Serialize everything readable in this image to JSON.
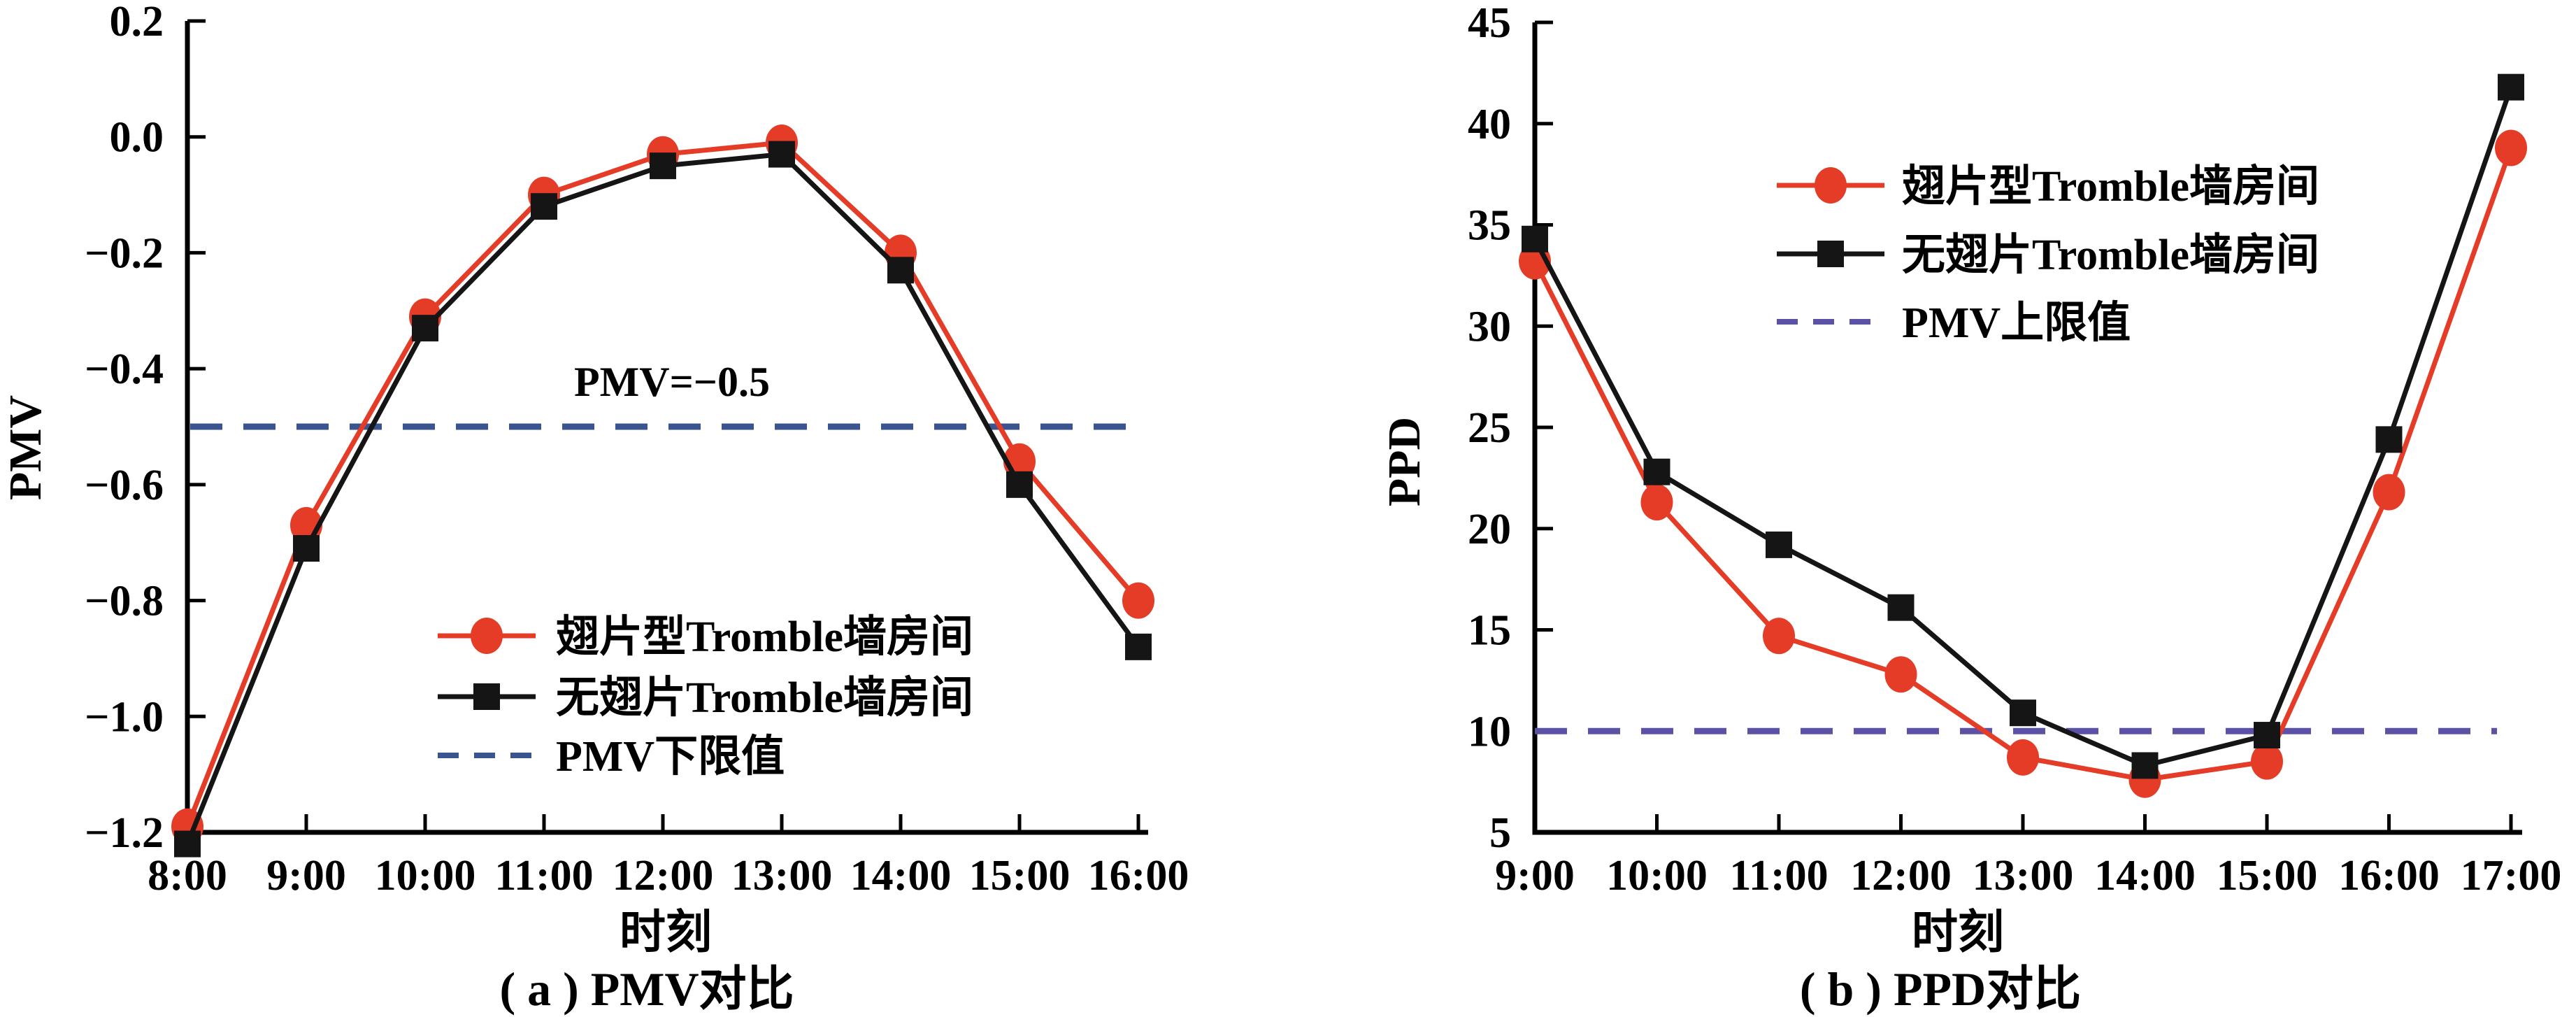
{
  "figure": {
    "background": "#ffffff",
    "description": "Two line charts comparing finned vs non-finned Tromble wall rooms"
  },
  "chart_data": [
    {
      "id": "pmv",
      "type": "line",
      "panel_label": "( a ) PMV对比",
      "xlabel": "时刻",
      "ylabel": "PMV",
      "x_categories": [
        "8:00",
        "9:00",
        "10:00",
        "11:00",
        "12:00",
        "13:00",
        "14:00",
        "15:00",
        "16:00"
      ],
      "ylim": [
        -1.2,
        0.2
      ],
      "y_ticks": [
        0.2,
        0.0,
        -0.2,
        -0.4,
        -0.6,
        -0.8,
        -1.0,
        -1.2
      ],
      "y_tick_labels": [
        "0.2",
        "0.0",
        "−0.2",
        "−0.4",
        "−0.6",
        "−0.8",
        "−1.0",
        "−1.2"
      ],
      "grid": false,
      "legend_position": "inside-lower-right",
      "series": [
        {
          "name": "翅片型Tromble墙房间",
          "color": "#e53c28",
          "marker": "circle",
          "values": [
            -1.19,
            -0.67,
            -0.31,
            -0.1,
            -0.03,
            -0.01,
            -0.2,
            -0.56,
            -0.8
          ]
        },
        {
          "name": "无翅片Tromble墙房间",
          "color": "#151515",
          "marker": "square",
          "values": [
            -1.22,
            -0.71,
            -0.33,
            -0.12,
            -0.05,
            -0.03,
            -0.23,
            -0.6,
            -0.88
          ]
        }
      ],
      "reference_line": {
        "label": "PMV下限值",
        "value": -0.5,
        "color": "#3a5490",
        "style": "dashed"
      },
      "annotation": {
        "text": "PMV=−0.5"
      }
    },
    {
      "id": "ppd",
      "type": "line",
      "panel_label": "( b ) PPD对比",
      "xlabel": "时刻",
      "ylabel": "PPD",
      "x_categories": [
        "9:00",
        "10:00",
        "11:00",
        "12:00",
        "13:00",
        "14:00",
        "15:00",
        "16:00",
        "17:00"
      ],
      "ylim": [
        5,
        45
      ],
      "y_ticks": [
        45,
        40,
        35,
        30,
        25,
        20,
        15,
        10,
        5
      ],
      "y_tick_labels": [
        "45",
        "40",
        "35",
        "30",
        "25",
        "20",
        "15",
        "10",
        "5"
      ],
      "grid": false,
      "legend_position": "inside-upper-right",
      "series": [
        {
          "name": "翅片型Tromble墙房间",
          "color": "#e53c28",
          "marker": "circle",
          "values": [
            33.2,
            21.3,
            14.7,
            12.8,
            8.7,
            7.6,
            8.5,
            21.8,
            38.8
          ]
        },
        {
          "name": "无翅片Tromble墙房间",
          "color": "#151515",
          "marker": "square",
          "values": [
            34.3,
            22.8,
            19.2,
            16.1,
            10.9,
            8.3,
            9.8,
            24.4,
            41.8
          ]
        }
      ],
      "reference_line": {
        "label": "PMV上限值",
        "value": 10,
        "color": "#5b51a5",
        "style": "dashed"
      }
    }
  ]
}
